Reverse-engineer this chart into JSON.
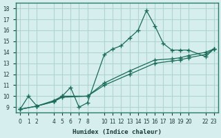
{
  "xlabel": "Humidex (Indice chaleur)",
  "bg_color": "#d6eeee",
  "grid_color": "#b0d4d4",
  "line_color": "#1a6b5a",
  "line_color2": "#1a6b5a",
  "xticks": [
    0,
    1,
    2,
    4,
    5,
    6,
    7,
    8,
    10,
    11,
    12,
    13,
    14,
    15,
    16,
    17,
    18,
    19,
    20,
    22,
    23
  ],
  "yticks": [
    9,
    10,
    11,
    12,
    13,
    14,
    15,
    16,
    17,
    18
  ],
  "xlim": [
    -0.5,
    23.5
  ],
  "ylim": [
    8.5,
    18.5
  ],
  "series1_x": [
    0,
    1,
    2,
    4,
    5,
    6,
    7,
    8,
    10,
    11,
    12,
    13,
    14,
    15,
    16,
    17,
    18,
    19,
    20,
    22,
    23
  ],
  "series1_y": [
    8.8,
    10.0,
    9.1,
    9.6,
    10.0,
    10.8,
    9.0,
    9.4,
    13.8,
    14.3,
    14.6,
    15.3,
    16.0,
    17.8,
    16.4,
    14.8,
    14.2,
    14.2,
    14.2,
    13.6,
    14.3
  ],
  "series2_x": [
    0,
    2,
    4,
    5,
    8,
    10,
    13,
    16,
    18,
    19,
    20,
    22,
    23
  ],
  "series2_y": [
    8.8,
    9.1,
    9.5,
    9.9,
    10.0,
    11.0,
    12.0,
    13.0,
    13.2,
    13.3,
    13.5,
    13.8,
    14.3
  ],
  "series3_x": [
    0,
    2,
    4,
    5,
    8,
    10,
    13,
    16,
    18,
    19,
    20,
    22,
    23
  ],
  "series3_y": [
    8.8,
    9.1,
    9.5,
    10.0,
    10.0,
    11.2,
    12.3,
    13.3,
    13.4,
    13.5,
    13.7,
    14.0,
    14.3
  ]
}
